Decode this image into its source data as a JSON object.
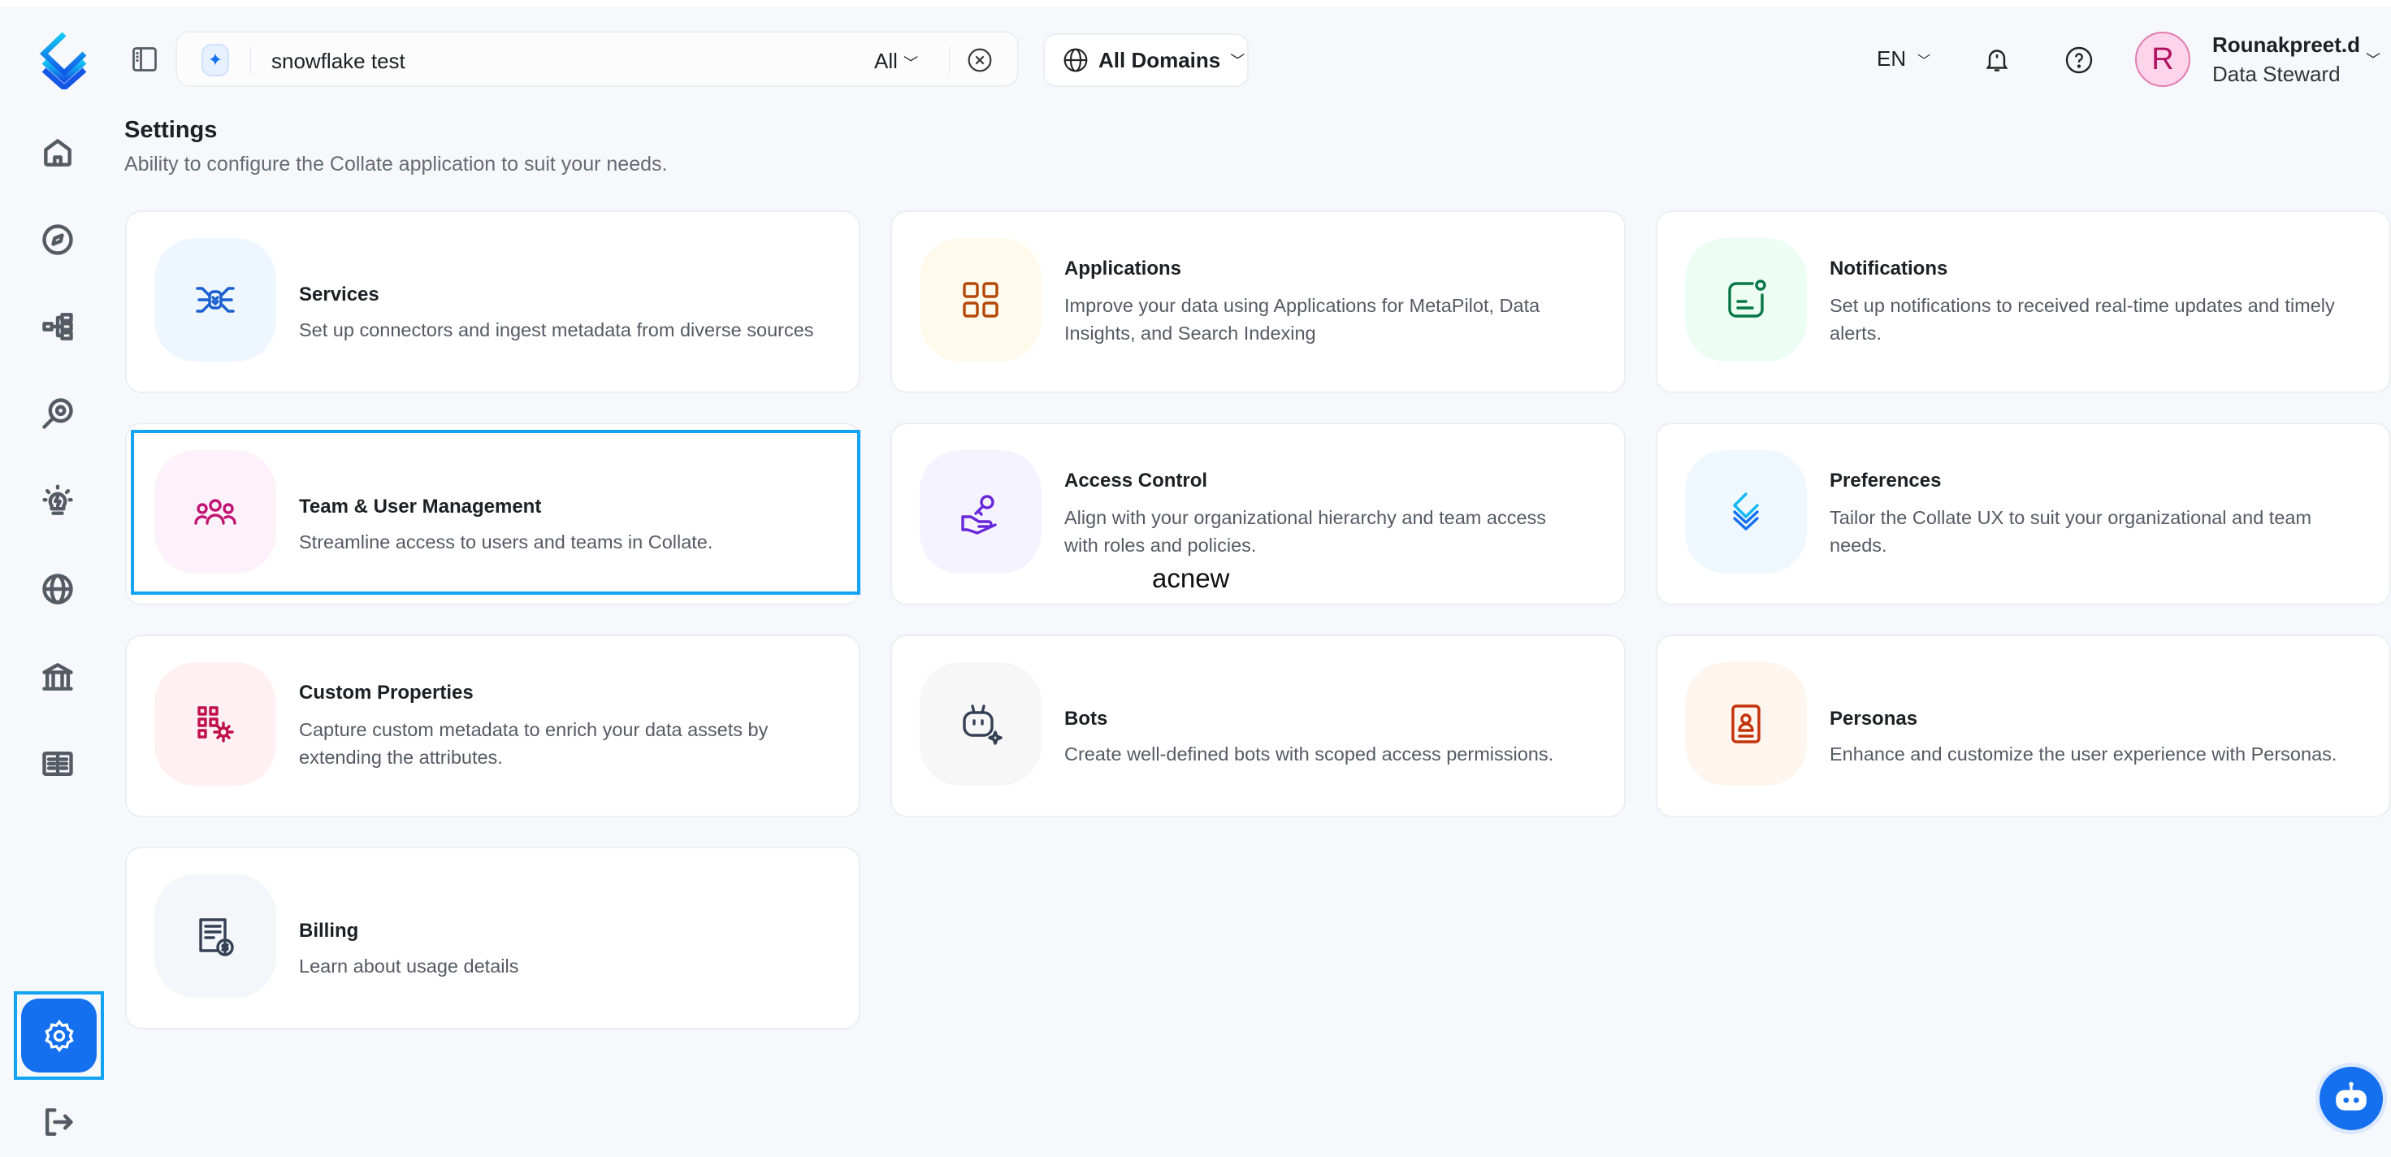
{
  "header": {
    "search": {
      "value": "snowflake test",
      "scope": "All"
    },
    "domains_label": "All Domains",
    "language": "EN",
    "user": {
      "initial": "R",
      "name": "Rounakpreet.d",
      "role": "Data Steward"
    }
  },
  "sidebar": {
    "items": [
      "home-icon",
      "explore-icon",
      "lineage-icon",
      "observability-icon",
      "insights-icon",
      "domains-icon",
      "governance-icon",
      "glossary-icon"
    ],
    "active": "settings"
  },
  "page": {
    "title": "Settings",
    "subtitle": "Ability to configure the Collate application to suit your needs."
  },
  "cards": [
    {
      "title": "Services",
      "desc": "Set up connectors and ingest metadata from diverse sources",
      "icon": "services-icon",
      "color": "#1a5fd1",
      "bg": "#eef6ff"
    },
    {
      "title": "Applications",
      "desc": "Improve your data using Applications for MetaPilot, Data Insights, and Search Indexing",
      "icon": "apps-grid-icon",
      "color": "#b54708",
      "bg": "#fffaeb"
    },
    {
      "title": "Notifications",
      "desc": "Set up notifications to received real-time updates and timely alerts.",
      "icon": "notification-icon",
      "color": "#067647",
      "bg": "#ecfdf3"
    },
    {
      "title": "Team & User Management",
      "desc": "Streamline access to users and teams in Collate.",
      "icon": "users-icon",
      "color": "#c11574",
      "bg": "#fdf2fa"
    },
    {
      "title": "Access Control",
      "desc": "Align with your organizational hierarchy and team access with roles and policies.",
      "icon": "key-hand-icon",
      "color": "#6927da",
      "bg": "#f4f3ff"
    },
    {
      "title": "Preferences",
      "desc": "Tailor the Collate UX to suit your organizational and team needs.",
      "icon": "layers-icon",
      "color": "#1570ef",
      "bg": "#eff8ff"
    },
    {
      "title": "Custom Properties",
      "desc": "Capture custom metadata to enrich your data assets by extending the attributes.",
      "icon": "custom-props-icon",
      "color": "#c01048",
      "bg": "#fff1f3"
    },
    {
      "title": "Bots",
      "desc": "Create well-defined bots with scoped access permissions.",
      "icon": "bot-icon",
      "color": "#344054",
      "bg": "#f7f7f8"
    },
    {
      "title": "Personas",
      "desc": "Enhance and customize the user experience with Personas.",
      "icon": "persona-icon",
      "color": "#c4320a",
      "bg": "#fef6ee"
    },
    {
      "title": "Billing",
      "desc": "Learn about usage details",
      "icon": "billing-icon",
      "color": "#344054",
      "bg": "#f5f6fa"
    }
  ],
  "overlay_label": "acnew"
}
